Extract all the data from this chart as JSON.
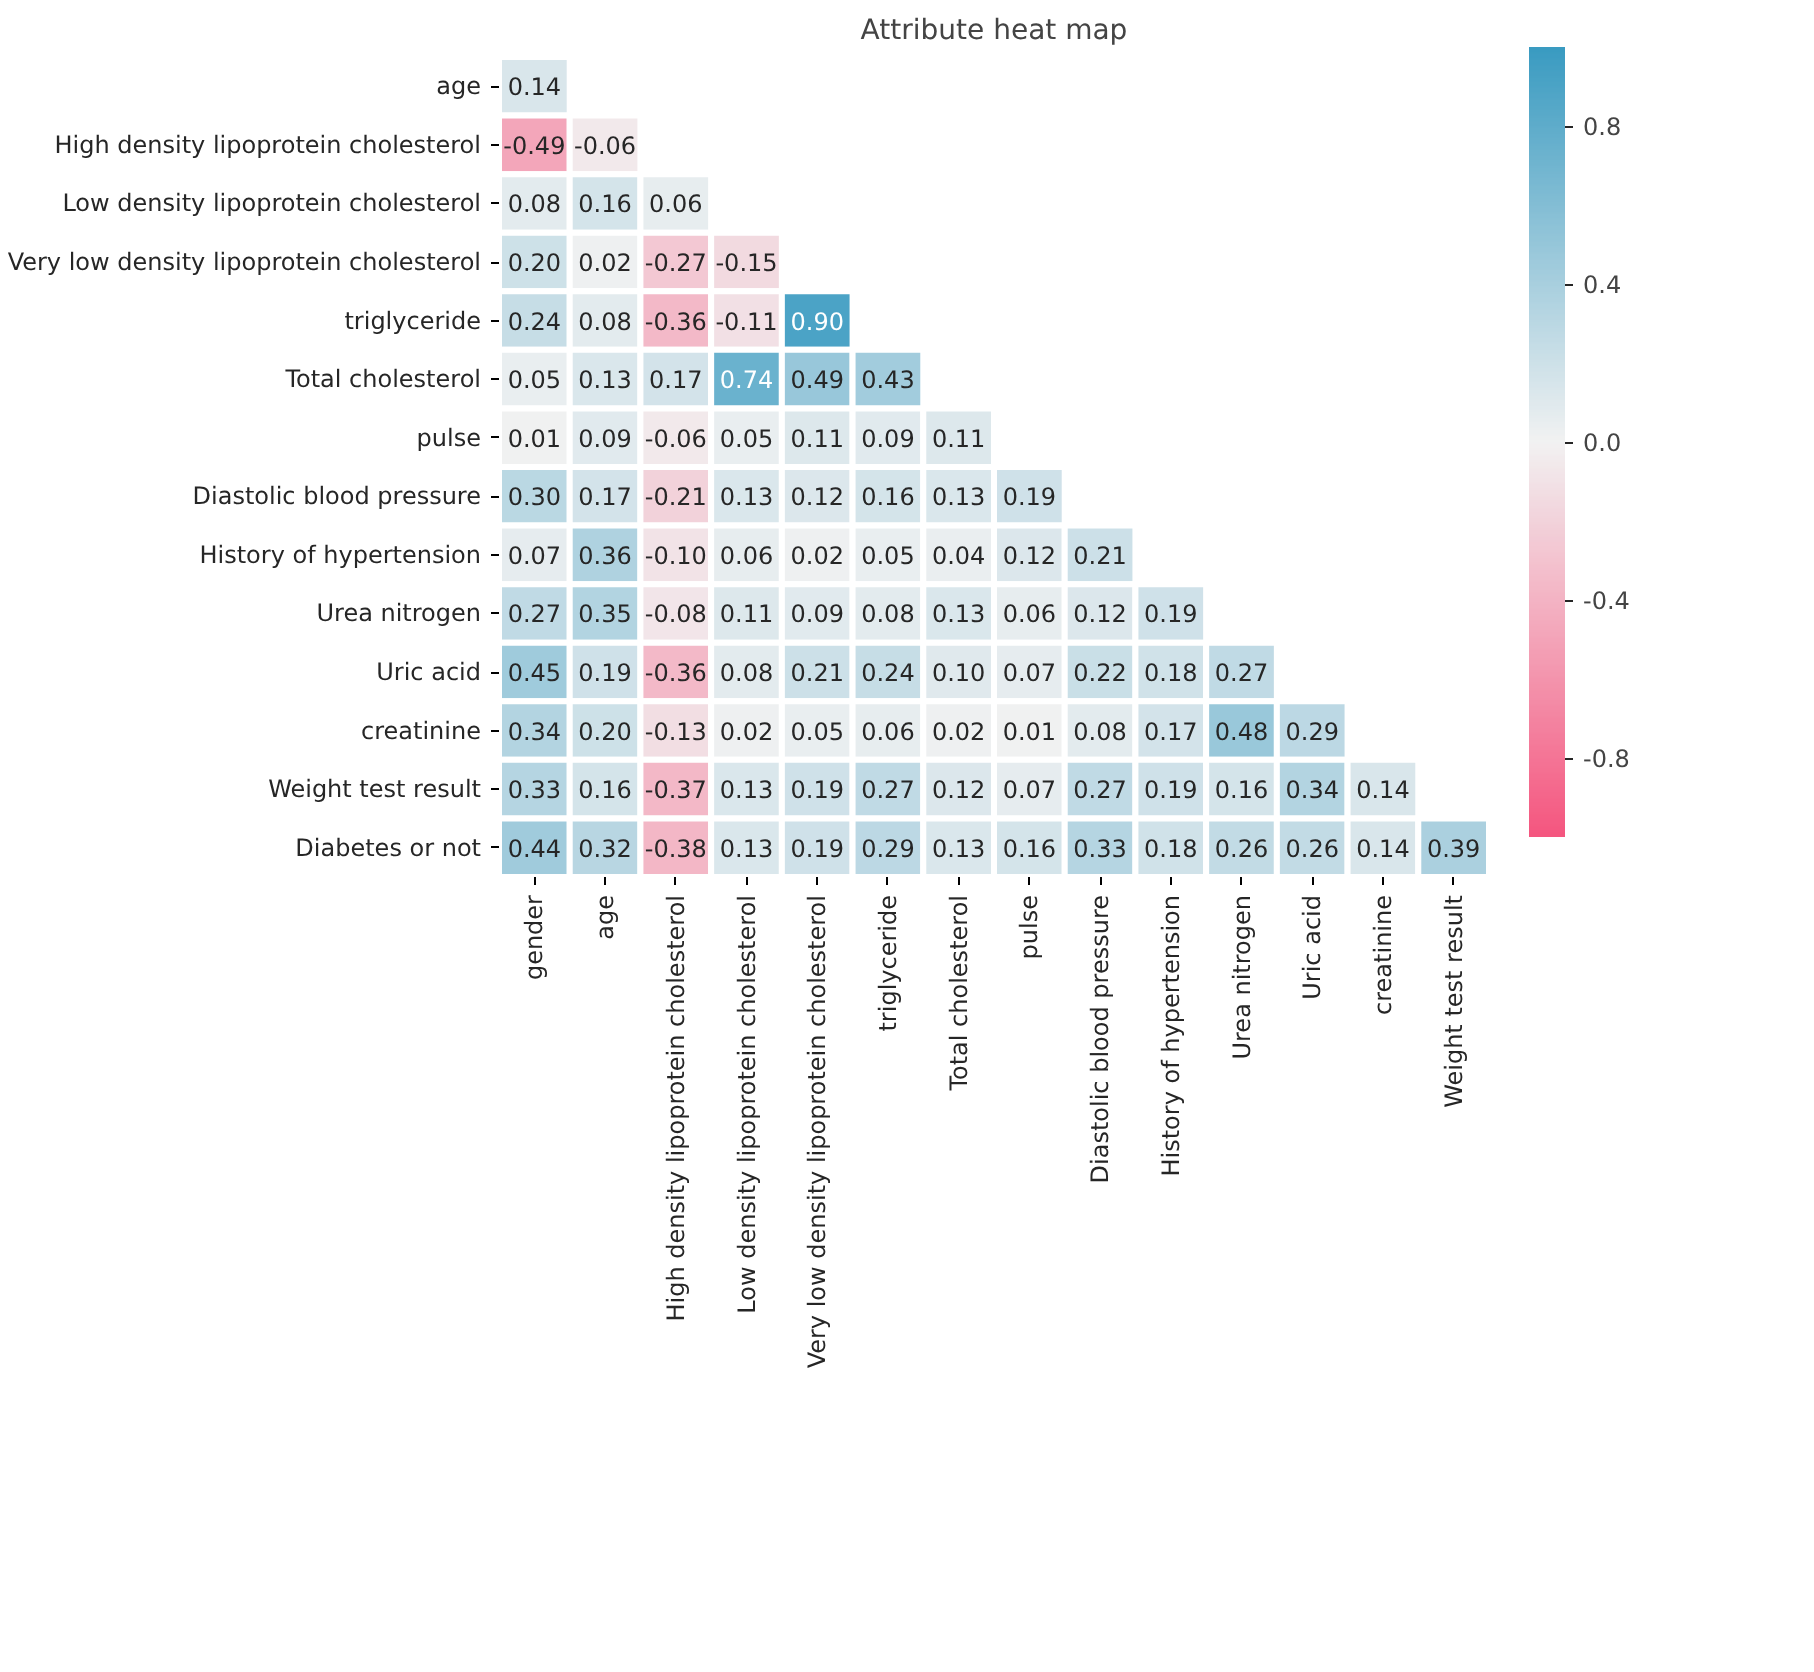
{
  "chart_data": {
    "type": "heatmap",
    "title": "Attribute heat map",
    "categories": [
      "gender",
      "age",
      "High density lipoprotein cholesterol",
      "Low density lipoprotein cholesterol",
      "Very low density lipoprotein cholesterol",
      "triglyceride",
      "Total cholesterol",
      "pulse",
      "Diastolic blood pressure",
      "History of hypertension",
      "Urea nitrogen",
      "Uric acid",
      "creatinine",
      "Weight test result"
    ],
    "y_categories": [
      "age",
      "High density lipoprotein cholesterol",
      "Low density lipoprotein cholesterol",
      "Very low density lipoprotein cholesterol",
      "triglyceride",
      "Total cholesterol",
      "pulse",
      "Diastolic blood pressure",
      "History of hypertension",
      "Urea nitrogen",
      "Uric acid",
      "creatinine",
      "Weight test result",
      "Diabetes or not"
    ],
    "cells": [
      [
        0.14,
        null,
        null,
        null,
        null,
        null,
        null,
        null,
        null,
        null,
        null,
        null,
        null,
        null
      ],
      [
        -0.49,
        -0.06,
        null,
        null,
        null,
        null,
        null,
        null,
        null,
        null,
        null,
        null,
        null,
        null
      ],
      [
        0.08,
        0.16,
        0.06,
        null,
        null,
        null,
        null,
        null,
        null,
        null,
        null,
        null,
        null,
        null
      ],
      [
        0.2,
        0.02,
        -0.27,
        -0.15,
        null,
        null,
        null,
        null,
        null,
        null,
        null,
        null,
        null,
        null
      ],
      [
        0.24,
        0.08,
        -0.36,
        -0.11,
        0.9,
        null,
        null,
        null,
        null,
        null,
        null,
        null,
        null,
        null
      ],
      [
        0.05,
        0.13,
        0.17,
        0.74,
        0.49,
        0.43,
        null,
        null,
        null,
        null,
        null,
        null,
        null,
        null
      ],
      [
        0.01,
        0.09,
        -0.06,
        0.05,
        0.11,
        0.09,
        0.11,
        null,
        null,
        null,
        null,
        null,
        null,
        null
      ],
      [
        0.3,
        0.17,
        -0.21,
        0.13,
        0.12,
        0.16,
        0.13,
        0.19,
        null,
        null,
        null,
        null,
        null,
        null
      ],
      [
        0.07,
        0.36,
        -0.1,
        0.06,
        0.02,
        0.05,
        0.04,
        0.12,
        0.21,
        null,
        null,
        null,
        null,
        null
      ],
      [
        0.27,
        0.35,
        -0.08,
        0.11,
        0.09,
        0.08,
        0.13,
        0.06,
        0.12,
        0.19,
        null,
        null,
        null,
        null
      ],
      [
        0.45,
        0.19,
        -0.36,
        0.08,
        0.21,
        0.24,
        0.1,
        0.07,
        0.22,
        0.18,
        0.27,
        null,
        null,
        null
      ],
      [
        0.34,
        0.2,
        -0.13,
        0.02,
        0.05,
        0.06,
        0.02,
        0.01,
        0.08,
        0.17,
        0.48,
        0.29,
        null,
        null
      ],
      [
        0.33,
        0.16,
        -0.37,
        0.13,
        0.19,
        0.27,
        0.12,
        0.07,
        0.27,
        0.19,
        0.16,
        0.34,
        0.14,
        null
      ],
      [
        0.44,
        0.32,
        -0.38,
        0.13,
        0.19,
        0.29,
        0.13,
        0.16,
        0.33,
        0.18,
        0.26,
        0.26,
        0.14,
        0.39
      ]
    ],
    "cell_labels": [
      [
        "0.14",
        null,
        null,
        null,
        null,
        null,
        null,
        null,
        null,
        null,
        null,
        null,
        null,
        null
      ],
      [
        "-0.49",
        "-0.06",
        null,
        null,
        null,
        null,
        null,
        null,
        null,
        null,
        null,
        null,
        null,
        null
      ],
      [
        "0.08",
        "0.16",
        "0.06",
        null,
        null,
        null,
        null,
        null,
        null,
        null,
        null,
        null,
        null,
        null
      ],
      [
        "0.20",
        "0.02",
        "-0.27",
        "-0.15",
        null,
        null,
        null,
        null,
        null,
        null,
        null,
        null,
        null,
        null
      ],
      [
        "0.24",
        "0.08",
        "-0.36",
        "-0.11",
        "0.90",
        null,
        null,
        null,
        null,
        null,
        null,
        null,
        null,
        null
      ],
      [
        "0.05",
        "0.13",
        "0.17",
        "0.74",
        "0.49",
        "0.43",
        null,
        null,
        null,
        null,
        null,
        null,
        null,
        null
      ],
      [
        "0.01",
        "0.09",
        "-0.06",
        "0.05",
        "0.11",
        "0.09",
        "0.11",
        null,
        null,
        null,
        null,
        null,
        null,
        null
      ],
      [
        "0.30",
        "0.17",
        "-0.21",
        "0.13",
        "0.12",
        "0.16",
        "0.13",
        "0.19",
        null,
        null,
        null,
        null,
        null,
        null
      ],
      [
        "0.07",
        "0.36",
        "-0.10",
        "0.06",
        "0.02",
        "0.05",
        "0.04",
        "0.12",
        "0.21",
        null,
        null,
        null,
        null,
        null
      ],
      [
        "0.27",
        "0.35",
        "-0.08",
        "0.11",
        "0.09",
        "0.08",
        "0.13",
        "0.06",
        "0.12",
        "0.19",
        null,
        null,
        null,
        null
      ],
      [
        "0.45",
        "0.19",
        "-0.36",
        "0.08",
        "0.21",
        "0.24",
        "0.10",
        "0.07",
        "0.22",
        "0.18",
        "0.27",
        null,
        null,
        null
      ],
      [
        "0.34",
        "0.20",
        "-0.13",
        "0.02",
        "0.05",
        "0.06",
        "0.02",
        "0.01",
        "0.08",
        "0.17",
        "0.48",
        "0.29",
        null,
        null
      ],
      [
        "0.33",
        "0.16",
        "-0.37",
        "0.13",
        "0.19",
        "0.27",
        "0.12",
        "0.07",
        "0.27",
        "0.19",
        "0.16",
        "0.34",
        "0.14",
        null
      ],
      [
        "0.44",
        "0.32",
        "-0.38",
        "0.13",
        "0.19",
        "0.29",
        "0.13",
        "0.16",
        "0.33",
        "0.18",
        "0.26",
        "0.26",
        "0.14",
        "0.39"
      ]
    ],
    "clim": [
      -1,
      1
    ],
    "cticks": [
      {
        "value": -0.8,
        "label": "-0.8"
      },
      {
        "value": -0.4,
        "label": "-0.4"
      },
      {
        "value": 0,
        "label": "0.0"
      },
      {
        "value": 0.4,
        "label": "0.4"
      },
      {
        "value": 0.8,
        "label": "0.8"
      }
    ]
  }
}
